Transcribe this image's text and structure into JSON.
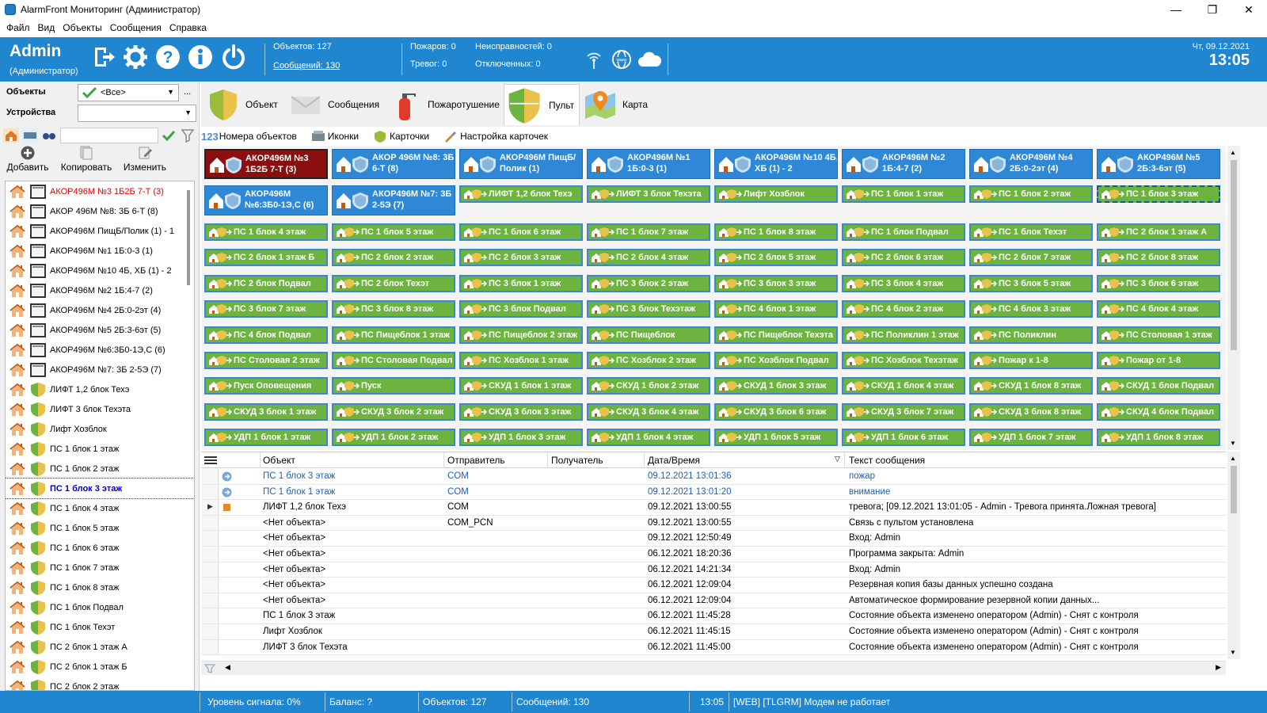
{
  "window": {
    "title": "AlarmFront Мониторинг (Администратор)",
    "minimize": "—",
    "maximize": "❐",
    "close": "✕"
  },
  "menu": [
    "Файл",
    "Вид",
    "Объекты",
    "Сообщения",
    "Справка"
  ],
  "header": {
    "user": "Admin",
    "role": "(Администратор)",
    "objects": "Объектов: 127",
    "messages": "Сообщений: 130",
    "fires": "Пожаров: 0",
    "alarms": "Тревог: 0",
    "faults": "Неисправностей: 0",
    "disabled": "Отключенных: 0",
    "date": "Чт, 09.12.2021",
    "time": "13:05"
  },
  "filters": {
    "objects_label": "Объекты",
    "objects_value": "<Все>",
    "devices_label": "Устройства",
    "devices_value": "",
    "more": "..."
  },
  "actions": {
    "add": "Добавить",
    "copy": "Копировать",
    "edit": "Изменить"
  },
  "tree": [
    {
      "label": "АКОР496М №3 1Б2Б 7-Т (3)",
      "kind": "dev",
      "alarm": true
    },
    {
      "label": "АКОР 496М №8: 3Б 6-Т (8)",
      "kind": "dev"
    },
    {
      "label": "АКОР496М ПищБ/Полик (1) - 1",
      "kind": "dev"
    },
    {
      "label": "АКОР496М №1 1Б:0-3 (1)",
      "kind": "dev"
    },
    {
      "label": "АКОР496М №10 4Б, ХБ (1) - 2",
      "kind": "dev"
    },
    {
      "label": "АКОР496М №2 1Б:4-7 (2)",
      "kind": "dev"
    },
    {
      "label": "АКОР496М №4 2Б:0-2эт (4)",
      "kind": "dev"
    },
    {
      "label": "АКОР496М №5 2Б:3-6эт (5)",
      "kind": "dev"
    },
    {
      "label": "АКОР496М №6:3Б0-1Э,С (6)",
      "kind": "dev"
    },
    {
      "label": "АКОР496М №7: 3Б 2-5Э (7)",
      "kind": "dev"
    },
    {
      "label": "ЛИФТ 1,2 блок Техэ",
      "kind": "shield"
    },
    {
      "label": "ЛИФТ 3 блок Техэта",
      "kind": "shield"
    },
    {
      "label": "Лифт Хозблок",
      "kind": "shield"
    },
    {
      "label": "ПС 1 блок 1 этаж",
      "kind": "shield"
    },
    {
      "label": "ПС 1 блок 2 этаж",
      "kind": "shield"
    },
    {
      "label": "ПС 1 блок 3 этаж",
      "kind": "shield",
      "selected": true
    },
    {
      "label": "ПС 1 блок 4 этаж",
      "kind": "shield"
    },
    {
      "label": "ПС 1 блок 5 этаж",
      "kind": "shield"
    },
    {
      "label": "ПС 1 блок 6 этаж",
      "kind": "shield"
    },
    {
      "label": "ПС 1 блок 7 этаж",
      "kind": "shield"
    },
    {
      "label": "ПС 1 блок 8 этаж",
      "kind": "shield"
    },
    {
      "label": "ПС 1 блок Подвал",
      "kind": "shield"
    },
    {
      "label": "ПС 1 блок Техэт",
      "kind": "shield"
    },
    {
      "label": "ПС 2 блок 1 этаж А",
      "kind": "shield"
    },
    {
      "label": "ПС 2 блок 1 этаж Б",
      "kind": "shield"
    },
    {
      "label": "ПС 2 блок 2 этаж",
      "kind": "shield"
    }
  ],
  "tabs": [
    {
      "label": "Объект",
      "icon": "shield-icon"
    },
    {
      "label": "Сообщения",
      "icon": "envelope-icon"
    },
    {
      "label": "Пожаротушение",
      "icon": "extinguisher-icon"
    },
    {
      "label": "Пульт",
      "icon": "console-shield-icon",
      "active": true
    },
    {
      "label": "Карта",
      "icon": "map-pin-icon"
    }
  ],
  "subtabs": [
    "Номера объектов",
    "Иконки",
    "Карточки",
    "Настройка карточек"
  ],
  "devices": [
    {
      "label": "АКОР496М №3 1Б2Б 7-Т (3)",
      "state": "red"
    },
    {
      "label": "АКОР 496М №8: 3Б 6-Т (8)",
      "state": "blue"
    },
    {
      "label": "АКОР496М ПищБ/Полик (1)",
      "state": "blue"
    },
    {
      "label": "АКОР496М №1 1Б:0-3 (1)",
      "state": "blue"
    },
    {
      "label": "АКОР496М №10 4Б, ХБ (1) - 2",
      "state": "blue"
    },
    {
      "label": "АКОР496М №2 1Б:4-7 (2)",
      "state": "blue"
    },
    {
      "label": "АКОР496М №4 2Б:0-2эт (4)",
      "state": "blue"
    },
    {
      "label": "АКОР496М №5 2Б:3-6эт (5)",
      "state": "blue"
    },
    {
      "label": "АКОР496М №6:3Б0-1Э,С (6)",
      "state": "blue"
    },
    {
      "label": "АКОР496М №7: 3Б 2-5Э (7)",
      "state": "blue"
    }
  ],
  "zones": [
    "ЛИФТ 1,2 блок Техэ",
    "ЛИФТ 3 блок Техэта",
    "Лифт Хозблок",
    "ПС 1 блок 1 этаж",
    "ПС 1 блок 2 этаж",
    "ПС 1 блок 3 этаж",
    "ПС 1 блок 4 этаж",
    "ПС 1 блок 5 этаж",
    "ПС 1 блок 6 этаж",
    "ПС 1 блок 7 этаж",
    "ПС 1 блок 8 этаж",
    "ПС 1 блок Подвал",
    "ПС 1 блок Техэт",
    "ПС 2 блок 1 этаж А",
    "ПС 2 блок 1 этаж Б",
    "ПС 2 блок 2 этаж",
    "ПС 2 блок 3 этаж",
    "ПС 2 блок 4 этаж",
    "ПС 2 блок 5 этаж",
    "ПС 2 блок 6 этаж",
    "ПС 2 блок 7 этаж",
    "ПС 2 блок 8 этаж",
    "ПС 2 блок Подвал",
    "ПС 2 блок Техэт",
    "ПС 3 блок 1 этаж",
    "ПС 3 блок 2 этаж",
    "ПС 3 блок 3 этаж",
    "ПС 3 блок 4 этаж",
    "ПС 3 блок 5 этаж",
    "ПС 3 блок 6 этаж",
    "ПС 3 блок 7 этаж",
    "ПС 3 блок 8 этаж",
    "ПС 3 блок Подвал",
    "ПС 3 блок Техэтаж",
    "ПС 4 блок 1 этаж",
    "ПС 4 блок 2 этаж",
    "ПС 4 блок 3 этаж",
    "ПС 4 блок 4 этаж",
    "ПС 4 блок Подвал",
    "ПС Пищеблок 1 этаж",
    "ПС Пищеблок 2 этаж",
    "ПС Пищеблок",
    "ПС Пищеблок Техэта",
    "ПС Поликлин 1 этаж",
    "ПС Поликлин",
    "ПС Столовая 1 этаж",
    "ПС Столовая 2 этаж",
    "ПС Столовая Подвал",
    "ПС Хозблок 1 этаж",
    "ПС Хозблок 2 этаж",
    "ПС Хозблок Подвал",
    "ПС Хозблок Техэтаж",
    "Пожар к 1-8",
    "Пожар от 1-8",
    "Пуск Оповещения",
    "Пуск",
    "СКУД 1 блок 1 этаж",
    "СКУД 1 блок 2 этаж",
    "СКУД 1 блок 3 этаж",
    "СКУД 1 блок 4 этаж",
    "СКУД 1 блок 8 этаж",
    "СКУД 1 блок Подвал",
    "СКУД 3 блок 1 этаж",
    "СКУД 3 блок 2 этаж",
    "СКУД 3 блок 3 этаж",
    "СКУД 3 блок 4 этаж",
    "СКУД 3 блок 6 этаж",
    "СКУД 3 блок 7 этаж",
    "СКУД 3 блок 8 этаж",
    "СКУД 4 блок Подвал",
    "УДП 1 блок 1 этаж",
    "УДП 1 блок 2 этаж",
    "УДП 1 блок 3 этаж",
    "УДП 1 блок 4 этаж",
    "УДП 1 блок 5 этаж",
    "УДП 1 блок 6 этаж",
    "УДП 1 блок 7 этаж",
    "УДП 1 блок 8 этаж"
  ],
  "selected_zone": "ПС 1 блок 3 этаж",
  "messages": {
    "columns": [
      "Объект",
      "Отправитель",
      "Получатель",
      "Дата/Время",
      "Текст сообщения"
    ],
    "rows": [
      {
        "obj": "ПС 1 блок 3 этаж",
        "from": "COM",
        "to": "",
        "dt": "09.12.2021 13:01:36",
        "text": "пожар",
        "style": "blue",
        "icon": "info"
      },
      {
        "obj": "ПС 1 блок 1 этаж",
        "from": "COM",
        "to": "",
        "dt": "09.12.2021 13:01:20",
        "text": "внимание",
        "style": "blue",
        "icon": "info"
      },
      {
        "obj": "ЛИФТ 1,2 блок Техэ",
        "from": "COM",
        "to": "",
        "dt": "09.12.2021 13:00:55",
        "text": "тревога;  [09.12.2021 13:01:05 - Admin - Тревога принята.Ложная тревога]",
        "style": "",
        "icon": "alarm",
        "expand": true
      },
      {
        "obj": "<Нет объекта>",
        "from": "COM_PCN",
        "to": "",
        "dt": "09.12.2021 13:00:55",
        "text": "Связь с пультом установлена",
        "style": ""
      },
      {
        "obj": "<Нет объекта>",
        "from": "",
        "to": "",
        "dt": "09.12.2021 12:50:49",
        "text": "Вход: Admin",
        "style": ""
      },
      {
        "obj": "<Нет объекта>",
        "from": "",
        "to": "",
        "dt": "06.12.2021 18:20:36",
        "text": "Программа закрыта: Admin",
        "style": ""
      },
      {
        "obj": "<Нет объекта>",
        "from": "",
        "to": "",
        "dt": "06.12.2021 14:21:34",
        "text": "Вход: Admin",
        "style": ""
      },
      {
        "obj": "<Нет объекта>",
        "from": "",
        "to": "",
        "dt": "06.12.2021 12:09:04",
        "text": "Резервная копия базы данных успешно создана",
        "style": ""
      },
      {
        "obj": "<Нет объекта>",
        "from": "",
        "to": "",
        "dt": "06.12.2021 12:09:04",
        "text": "Автоматическое формирование резервной копии данных...",
        "style": ""
      },
      {
        "obj": "ПС 1 блок 3 этаж",
        "from": "",
        "to": "",
        "dt": "06.12.2021 11:45:28",
        "text": "Состояние объекта изменено оператором (Admin) - Снят с контроля",
        "style": ""
      },
      {
        "obj": "Лифт Хозблок",
        "from": "",
        "to": "",
        "dt": "06.12.2021 11:45:15",
        "text": "Состояние объекта изменено оператором (Admin) - Снят с контроля",
        "style": ""
      },
      {
        "obj": "ЛИФТ 3 блок Техэта",
        "from": "",
        "to": "",
        "dt": "06.12.2021 11:45:00",
        "text": "Состояние объекта изменено оператором (Admin) - Снят с контроля",
        "style": ""
      }
    ]
  },
  "status": {
    "signal": "Уровень сигнала: 0%",
    "balance": "Баланс: ?",
    "objects": "Объектов: 127",
    "messages": "Сообщений: 130",
    "time": "13:05",
    "modem": "[WEB] [TLGRM] Модем не работает"
  },
  "colors": {
    "header": "#1f86cf",
    "device_blue": "#2f88d6",
    "device_alarm": "#8b0f0f",
    "zone_green": "#6db33f"
  }
}
